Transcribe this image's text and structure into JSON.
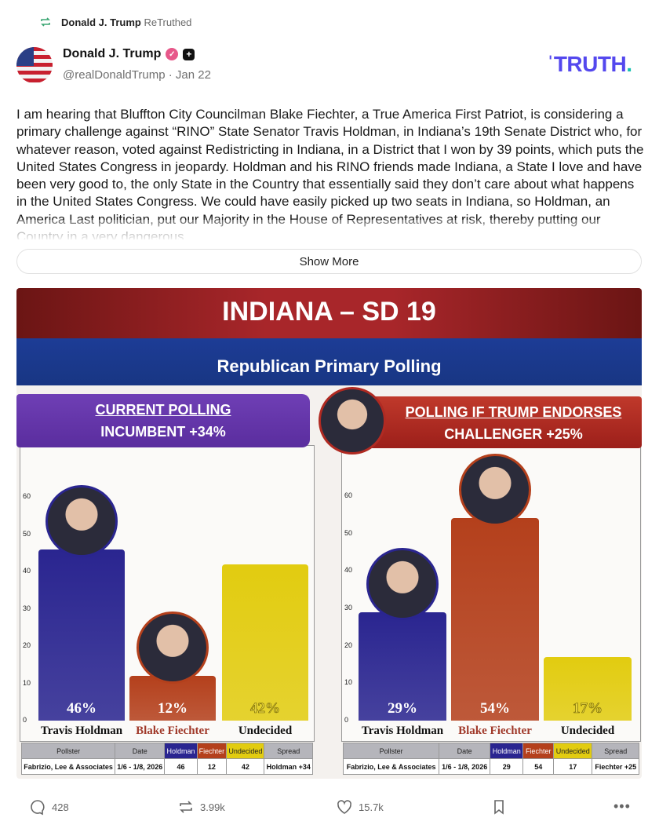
{
  "retruth": {
    "by": "Donald J. Trump",
    "label": "ReTruthed"
  },
  "author": {
    "name": "Donald J. Trump",
    "handle": "@realDonaldTrump",
    "date": "Jan 22"
  },
  "logo": {
    "text": "TRUTH",
    "dot": "."
  },
  "post": {
    "body": "I am hearing that Bluffton City Councilman Blake Fiechter, a True America First Patriot, is considering a primary challenge against “RINO” State Senator Travis Holdman, in Indiana’s 19th Senate District who, for whatever reason, voted against Redistricting in Indiana, in a District that I won by 39 points, which puts the United States Congress in jeopardy. Holdman and his RINO friends made Indiana, a State I love and have been very good to, the only State in the Country that essentially said they don’t care about what happens in the United States Congress. We could have easily picked up two seats in Indiana, so Holdman, an America Last politician, put our Majority in the House of Representatives at risk, thereby putting our Country in a very dangerous",
    "show_more": "Show More"
  },
  "graphic": {
    "title": "INDIANA – SD 19",
    "subtitle": "Republican Primary Polling",
    "left_head": {
      "line1": "CURRENT POLLING",
      "line2": "INCUMBENT +34%"
    },
    "right_head": {
      "line1": "POLLING IF TRUMP ENDORSES",
      "line2": "CHALLENGER +25%"
    }
  },
  "chart_data": [
    {
      "type": "bar",
      "title": "CURRENT POLLING",
      "categories": [
        "Travis Holdman",
        "Blake Fiechter",
        "Undecided"
      ],
      "values": [
        46,
        12,
        42
      ],
      "labels": [
        "46%",
        "12%",
        "42%"
      ],
      "ylim": [
        0,
        60
      ],
      "yticks": [
        0,
        10,
        20,
        30,
        40,
        50,
        60
      ],
      "colors": [
        "#2a2590",
        "#b4401c",
        "#e2cc10"
      ]
    },
    {
      "type": "bar",
      "title": "POLLING IF TRUMP ENDORSES",
      "categories": [
        "Travis Holdman",
        "Blake Fiechter",
        "Undecided"
      ],
      "values": [
        29,
        54,
        17
      ],
      "labels": [
        "29%",
        "54%",
        "17%"
      ],
      "ylim": [
        0,
        60
      ],
      "yticks": [
        0,
        10,
        20,
        30,
        40,
        50,
        60
      ],
      "colors": [
        "#2a2590",
        "#b4401c",
        "#e2cc10"
      ]
    }
  ],
  "tables": {
    "headers": [
      "Pollster",
      "Date",
      "Holdman",
      "Fiechter",
      "Undecided",
      "Spread"
    ],
    "left": [
      "Fabrizio, Lee & Associates",
      "1/6 - 1/8, 2026",
      "46",
      "12",
      "42",
      "Holdman +34"
    ],
    "right": [
      "Fabrizio, Lee & Associates",
      "1/6 - 1/8, 2026",
      "29",
      "54",
      "17",
      "Fiechter +25"
    ]
  },
  "actions": {
    "replies": "428",
    "retruths": "3.99k",
    "likes": "15.7k"
  }
}
